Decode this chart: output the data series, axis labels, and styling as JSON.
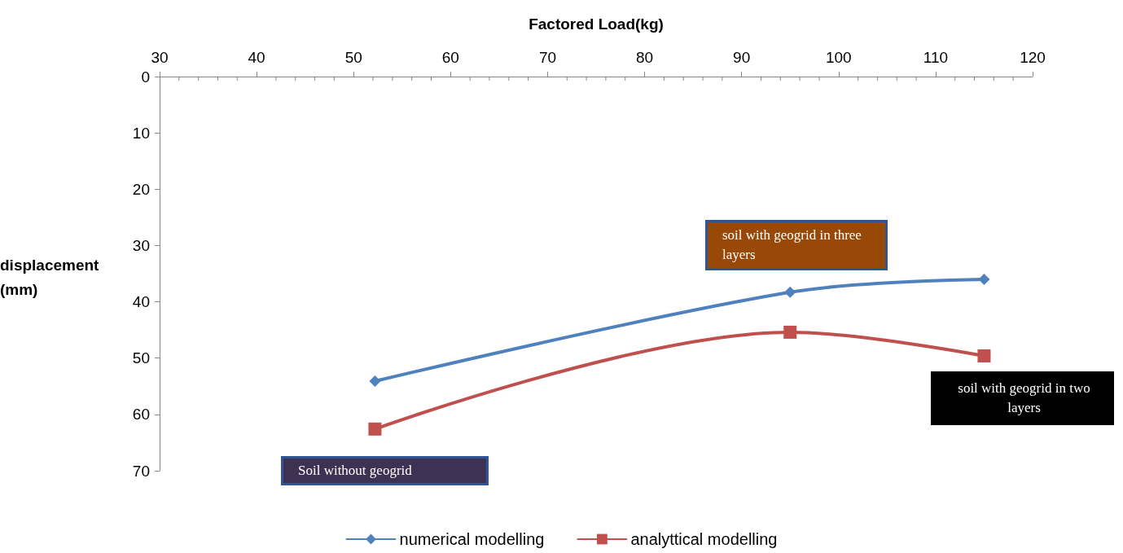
{
  "chart_data": {
    "type": "line",
    "xlabel": "Factored Load(kg)",
    "ylabel": "displacement (mm)",
    "x": [
      52.2,
      95,
      115
    ],
    "series": [
      {
        "name": "numerical modelling",
        "color": "#4f81bd",
        "marker": "diamond",
        "values": [
          54.1,
          38.3,
          36.0
        ]
      },
      {
        "name": "analyttical modelling",
        "color": "#c0504d",
        "marker": "square",
        "values": [
          62.6,
          45.4,
          49.6
        ]
      }
    ],
    "xlim": [
      30,
      120
    ],
    "xticks": [
      30,
      40,
      50,
      60,
      70,
      80,
      90,
      100,
      110,
      120
    ],
    "ylim": [
      70,
      0
    ],
    "yticks": [
      0,
      10,
      20,
      30,
      40,
      50,
      60,
      70
    ],
    "grid": false,
    "legend": "bottom",
    "line_style": "solid",
    "annotations": [
      "Soil without geogrid",
      "soil with geogrid in three layers",
      "soil with geogrid in two layers"
    ]
  }
}
